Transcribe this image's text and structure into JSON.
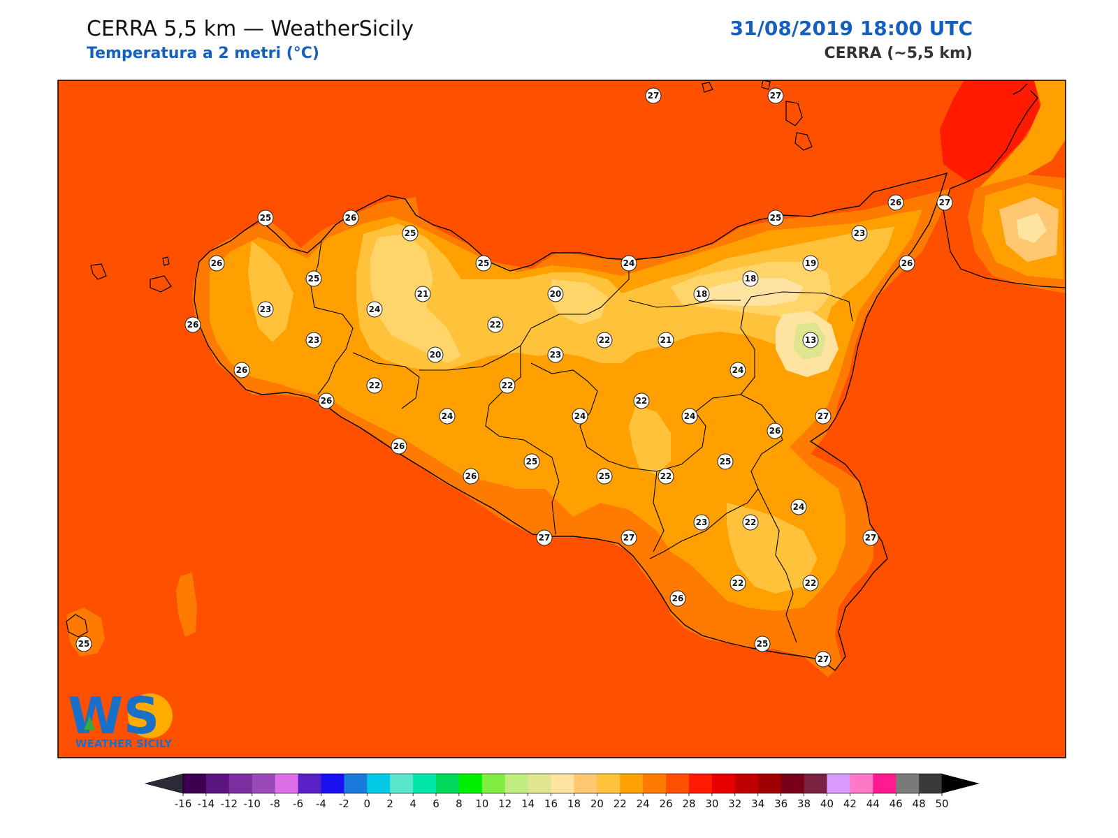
{
  "header": {
    "title": "CERRA 5,5 km — WeatherSicily",
    "subtitle": "Temperatura a 2 metri (°C)",
    "datetime": "31/08/2019 18:00 UTC",
    "model": "CERRA (~5,5 km)"
  },
  "logo": {
    "letters": "WS",
    "name": "WEATHER SICILY"
  },
  "colors": {
    "sea": "#ff5000",
    "land_base": "#ff7a00",
    "band_24": "#ffa000",
    "band_22": "#ffc23a",
    "band_20": "#ffd56a",
    "band_18": "#ffe3a0",
    "band_14": "#dde68f",
    "band_28": "#ff1a00",
    "accent_blue": "#1560bd"
  },
  "colorbar": {
    "ticks": [
      "-16",
      "-14",
      "-12",
      "-10",
      "-8",
      "-6",
      "-4",
      "-2",
      "0",
      "2",
      "4",
      "6",
      "8",
      "10",
      "12",
      "14",
      "16",
      "18",
      "20",
      "22",
      "24",
      "26",
      "28",
      "30",
      "32",
      "34",
      "36",
      "38",
      "40",
      "42",
      "44",
      "46",
      "48",
      "50"
    ],
    "colors": [
      "#3d0050",
      "#5c1580",
      "#7a2fa0",
      "#9a4ab8",
      "#dd6ee8",
      "#5a20c8",
      "#1a10f0",
      "#1a7adc",
      "#00c8e6",
      "#5ae8cc",
      "#00e6a8",
      "#00d85a",
      "#00ee00",
      "#80ee40",
      "#c0ec80",
      "#dfe68f",
      "#ffe3a0",
      "#ffc870",
      "#ffc23a",
      "#ffa000",
      "#ff7a00",
      "#ff5000",
      "#ff1a00",
      "#e60000",
      "#c00000",
      "#a00000",
      "#780018",
      "#7a2040",
      "#d89aff",
      "#ff78c8",
      "#ff1a90",
      "#7a7a7a",
      "#3a3a3a"
    ]
  },
  "stations": [
    {
      "v": "27"
    },
    {
      "v": "27"
    },
    {
      "v": "25"
    },
    {
      "v": "26"
    },
    {
      "v": "25"
    },
    {
      "v": "25"
    },
    {
      "v": "26"
    },
    {
      "v": "27"
    },
    {
      "v": "26"
    },
    {
      "v": "25"
    },
    {
      "v": "24"
    },
    {
      "v": "23"
    },
    {
      "v": "19"
    },
    {
      "v": "26"
    },
    {
      "v": "18"
    },
    {
      "v": "21"
    },
    {
      "v": "20"
    },
    {
      "v": "18"
    },
    {
      "v": "25"
    },
    {
      "v": "23"
    },
    {
      "v": "24"
    },
    {
      "v": "22"
    },
    {
      "v": "26"
    },
    {
      "v": "13"
    },
    {
      "v": "23"
    },
    {
      "v": "20"
    },
    {
      "v": "23"
    },
    {
      "v": "22"
    },
    {
      "v": "21"
    },
    {
      "v": "26"
    },
    {
      "v": "22"
    },
    {
      "v": "22"
    },
    {
      "v": "24"
    },
    {
      "v": "26"
    },
    {
      "v": "24"
    },
    {
      "v": "24"
    },
    {
      "v": "22"
    },
    {
      "v": "24"
    },
    {
      "v": "27"
    },
    {
      "v": "26"
    },
    {
      "v": "26"
    },
    {
      "v": "25"
    },
    {
      "v": "25"
    },
    {
      "v": "25"
    },
    {
      "v": "26"
    },
    {
      "v": "22"
    },
    {
      "v": "23"
    },
    {
      "v": "22"
    },
    {
      "v": "24"
    },
    {
      "v": "27"
    },
    {
      "v": "27"
    },
    {
      "v": "27"
    },
    {
      "v": "26"
    },
    {
      "v": "22"
    },
    {
      "v": "22"
    },
    {
      "v": "25"
    },
    {
      "v": "27"
    },
    {
      "v": "25"
    }
  ]
}
